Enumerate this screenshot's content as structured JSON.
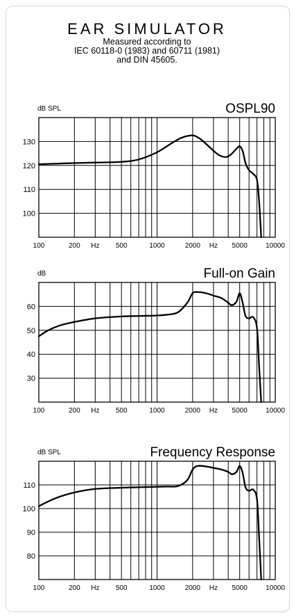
{
  "header": {
    "title": "EAR SIMULATOR",
    "subtitle_lines": [
      "Measured according to",
      "IEC 60118-0 (1983) and 60711 (1981)",
      "and DIN 45605."
    ]
  },
  "chart_data": [
    {
      "type": "line",
      "title": "OSPL90",
      "ylabel": "dB SPL",
      "xscale": "log",
      "xlim": [
        100,
        10000
      ],
      "ylim": [
        90,
        140
      ],
      "yticks": [
        100,
        110,
        120,
        130
      ],
      "xtick_labels": [
        "100",
        "200",
        "Hz",
        "500",
        "1000",
        "2000",
        "Hz",
        "5000",
        "10000"
      ],
      "grid": true,
      "series": [
        {
          "x": [
            100,
            150,
            200,
            300,
            500,
            700,
            1000,
            1300,
            1600,
            1900,
            2100,
            2400,
            2800,
            3300,
            3800,
            4200,
            4700,
            5000,
            5300,
            5600,
            6000,
            6500,
            7000,
            7300,
            7600
          ],
          "y": [
            120.5,
            120.8,
            121,
            121.2,
            121.5,
            122.5,
            125.5,
            129,
            131.5,
            132.5,
            132.3,
            130.5,
            127.5,
            124.5,
            123.5,
            124.5,
            127,
            128,
            126,
            121,
            118,
            116.5,
            114,
            105,
            90
          ]
        }
      ]
    },
    {
      "type": "line",
      "title": "Full-on Gain",
      "ylabel": "dB",
      "xscale": "log",
      "xlim": [
        100,
        10000
      ],
      "ylim": [
        20,
        70
      ],
      "yticks": [
        30,
        40,
        50,
        60
      ],
      "xtick_labels": [
        "100",
        "200",
        "Hz",
        "500",
        "1000",
        "2000",
        "Hz",
        "5000",
        "10000"
      ],
      "grid": true,
      "series": [
        {
          "x": [
            100,
            120,
            150,
            200,
            300,
            500,
            700,
            1000,
            1200,
            1500,
            1800,
            2000,
            2200,
            2600,
            3000,
            3500,
            4000,
            4300,
            4700,
            5000,
            5300,
            5600,
            6000,
            6500,
            7000,
            7300,
            7600
          ],
          "y": [
            47.5,
            50,
            52,
            53.5,
            55,
            55.8,
            56,
            56.2,
            56.5,
            57.5,
            61.5,
            65.5,
            66,
            65.5,
            64.5,
            63.5,
            61.5,
            60.5,
            62,
            65.5,
            61.5,
            56,
            55,
            55.5,
            51,
            35,
            20
          ]
        }
      ]
    },
    {
      "type": "line",
      "title": "Frequency Response",
      "ylabel": "dB SPL",
      "xscale": "log",
      "xlim": [
        100,
        10000
      ],
      "ylim": [
        70,
        120
      ],
      "yticks": [
        80,
        90,
        100,
        110
      ],
      "xtick_labels": [
        "100",
        "200",
        "Hz",
        "500",
        "1000",
        "2000",
        "Hz",
        "5000",
        "10000"
      ],
      "grid": true,
      "series": [
        {
          "x": [
            100,
            120,
            150,
            200,
            300,
            500,
            700,
            1000,
            1200,
            1500,
            1800,
            2000,
            2200,
            2600,
            3000,
            3500,
            4000,
            4300,
            4700,
            5000,
            5300,
            5600,
            6000,
            6500,
            7000,
            7300,
            7600
          ],
          "y": [
            101,
            103,
            105,
            106.8,
            108.3,
            108.8,
            109,
            109.2,
            109.3,
            109.5,
            112,
            116.5,
            118,
            117.8,
            117.2,
            116.5,
            115.5,
            114.5,
            115.5,
            118,
            115,
            109,
            107.5,
            108,
            104,
            88,
            70
          ]
        }
      ]
    }
  ]
}
